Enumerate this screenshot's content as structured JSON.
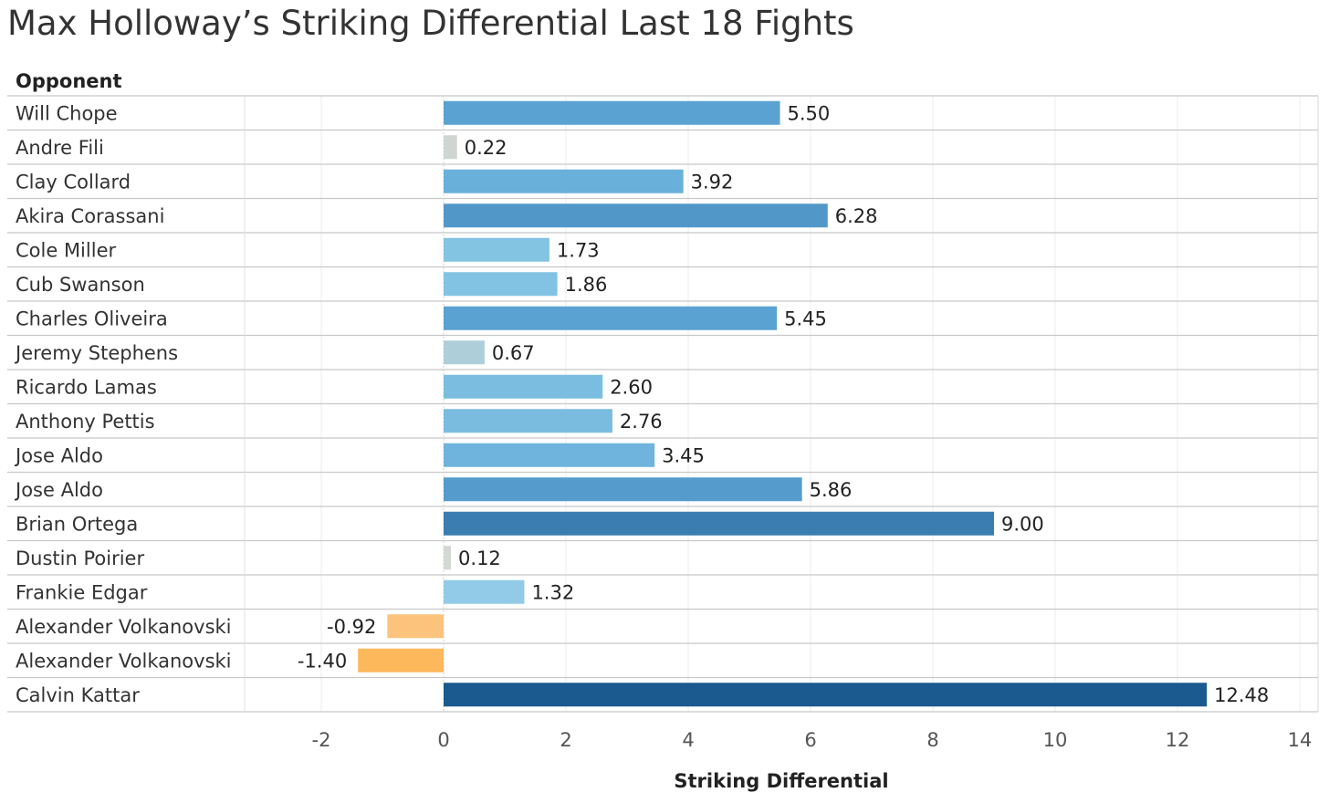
{
  "title": "Max Holloway’s Striking Differential Last 18 Fights",
  "chart_data": {
    "type": "bar",
    "orientation": "horizontal",
    "row_header": "Opponent",
    "xlabel": "Striking Differential",
    "xlim": [
      -3.2,
      14.4
    ],
    "xticks": [
      -2,
      0,
      2,
      4,
      6,
      8,
      10,
      12,
      14
    ],
    "grid": true,
    "categories": [
      "Will Chope",
      "Andre Fili",
      "Clay Collard",
      "Akira Corassani",
      "Cole Miller",
      "Cub Swanson",
      "Charles Oliveira",
      "Jeremy Stephens",
      "Ricardo Lamas",
      "Anthony Pettis",
      "Jose Aldo",
      "Jose Aldo",
      "Brian Ortega",
      "Dustin Poirier",
      "Frankie Edgar",
      "Alexander Volkanovski",
      "Alexander Volkanovski",
      "Calvin Kattar"
    ],
    "values": [
      5.5,
      0.22,
      3.92,
      6.28,
      1.73,
      1.86,
      5.45,
      0.67,
      2.6,
      2.76,
      3.45,
      5.86,
      9.0,
      0.12,
      1.32,
      -0.92,
      -1.4,
      12.48
    ],
    "labels": [
      "5.50",
      "0.22",
      "3.92",
      "6.28",
      "1.73",
      "1.86",
      "5.45",
      "0.67",
      "2.60",
      "2.76",
      "3.45",
      "5.86",
      "9.00",
      "0.12",
      "1.32",
      "-0.92",
      "-1.40",
      "12.48"
    ],
    "colors": [
      "#5aa2d1",
      "#cfd6d2",
      "#69b0da",
      "#5198c9",
      "#84c4e3",
      "#82c3e3",
      "#5aa2d1",
      "#aecfd9",
      "#7abde0",
      "#79bce0",
      "#6fb4dc",
      "#559ccc",
      "#3b7db1",
      "#d3d8d3",
      "#91cbe7",
      "#fbc37c",
      "#fdb85c",
      "#1b5a8e"
    ]
  }
}
